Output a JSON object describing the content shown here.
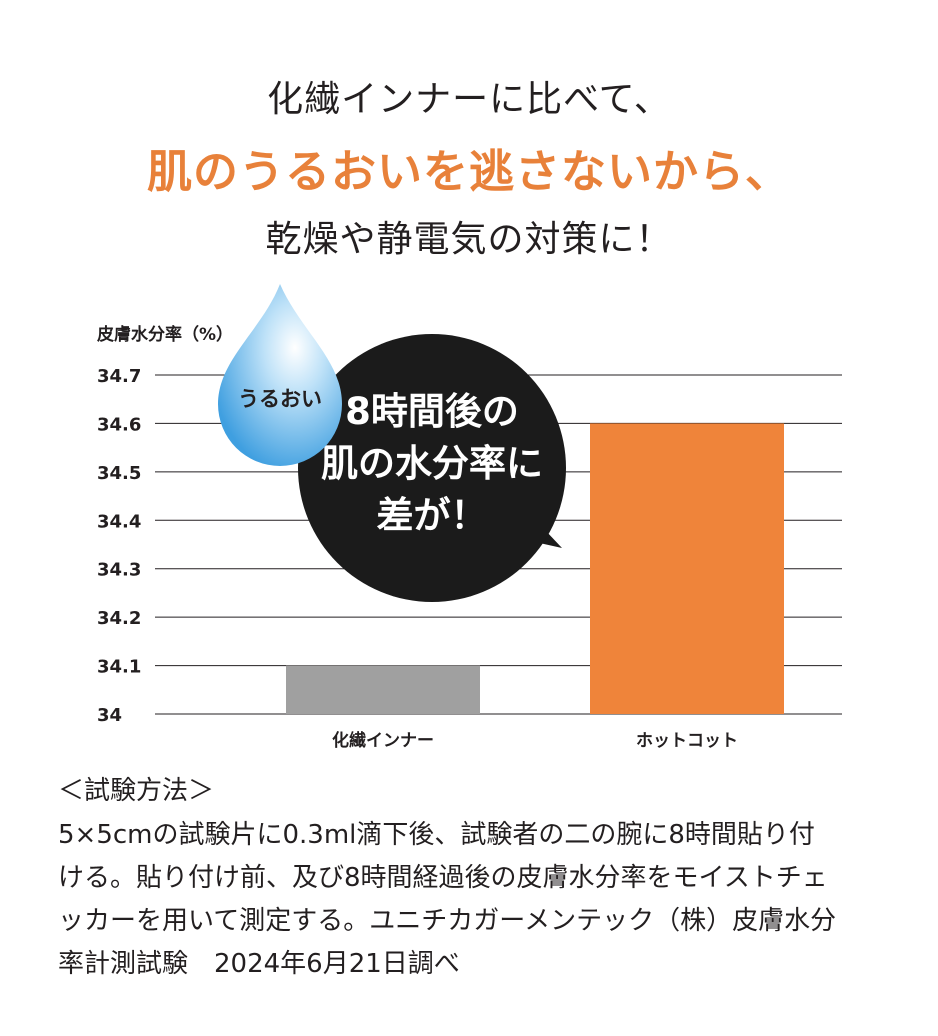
{
  "headline": {
    "line1": "化繊インナーに比べて、",
    "line2": "肌のうるおいを逃さないから、",
    "line3": "乾燥や静電気の対策に！"
  },
  "colors": {
    "accent": "#e8813a",
    "bar_competitor": "#a0a0a0",
    "bar_product": "#ef843a",
    "bubble": "#1b1b1b",
    "drop": "#5ab0e6"
  },
  "chart_data": {
    "type": "bar",
    "ylabel": "皮膚水分率（%）",
    "ylim": [
      34,
      34.7
    ],
    "yticks": [
      "34.7",
      "34.6",
      "34.5",
      "34.4",
      "34.3",
      "34.2",
      "34.1",
      "34"
    ],
    "categories": [
      "化繊インナー",
      "ホットコット"
    ],
    "values": [
      34.1,
      34.6
    ],
    "grid": true
  },
  "callout": {
    "drop_label": "うるおい",
    "bubble_lines": [
      "8時間後の",
      "肌の水分率に",
      "差が！"
    ]
  },
  "method": {
    "title": "＜試験方法＞",
    "lines": [
      "5×5cmの試験片に0.3ml滴下後、試験者の二の腕に8時間貼り付",
      "ける。貼り付け前、及び8時間経過後の皮膚水分率をモイストチェ",
      "ッカーを用いて測定する。ユニチカガーメンテック（株）皮膚水分",
      "率計測試験　2024年6月21日調べ"
    ]
  }
}
